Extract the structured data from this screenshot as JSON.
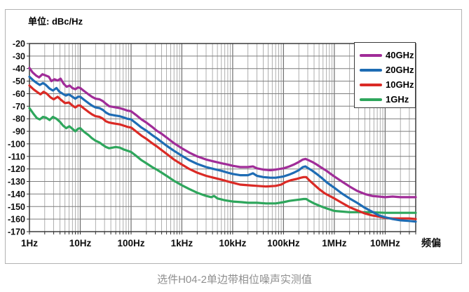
{
  "header": {
    "unit_label": "单位: dBc/Hz"
  },
  "caption": "选件H04-2单边带相位噪声实测值",
  "chart_data": {
    "type": "line",
    "title": "选件H04-2单边带相位噪声实测值",
    "unit_label": "单位: dBc/Hz",
    "xlabel": "频偏",
    "ylabel": "dBc/Hz",
    "x_scale": "log",
    "x_range": [
      1,
      40000000
    ],
    "ylim": [
      -170,
      -20
    ],
    "grid": true,
    "legend_position": "top-right",
    "y_ticks": [
      -20,
      -30,
      -40,
      -50,
      -60,
      -70,
      -80,
      -90,
      -100,
      -110,
      -120,
      -130,
      -140,
      -150,
      -160,
      -170
    ],
    "x_ticks": [
      {
        "f": 1,
        "label": "1Hz"
      },
      {
        "f": 10,
        "label": "10Hz"
      },
      {
        "f": 100,
        "label": "100Hz"
      },
      {
        "f": 1000,
        "label": "1kHz"
      },
      {
        "f": 10000,
        "label": "10kHz"
      },
      {
        "f": 100000,
        "label": "100kHz"
      },
      {
        "f": 1000000,
        "label": "1MHz"
      },
      {
        "f": 10000000,
        "label": "10MHz"
      }
    ],
    "series": [
      {
        "name": "40GHz",
        "color": "#A02C98",
        "points": [
          [
            1,
            -39.5
          ],
          [
            1.15,
            -43
          ],
          [
            1.35,
            -45.5
          ],
          [
            1.55,
            -47
          ],
          [
            1.8,
            -44.5
          ],
          [
            2.1,
            -45.5
          ],
          [
            2.4,
            -46.5
          ],
          [
            2.7,
            -50
          ],
          [
            3.1,
            -48.5
          ],
          [
            3.6,
            -49.5
          ],
          [
            4.1,
            -48
          ],
          [
            4.7,
            -52
          ],
          [
            5.4,
            -54.5
          ],
          [
            6.2,
            -53.5
          ],
          [
            7,
            -55.5
          ],
          [
            8,
            -56.5
          ],
          [
            9,
            -55
          ],
          [
            10,
            -55.5
          ],
          [
            12,
            -58
          ],
          [
            14.5,
            -60.5
          ],
          [
            17,
            -62.5
          ],
          [
            20,
            -64
          ],
          [
            24,
            -64.5
          ],
          [
            28,
            -66
          ],
          [
            32,
            -68
          ],
          [
            37,
            -70
          ],
          [
            43,
            -70.5
          ],
          [
            50,
            -71
          ],
          [
            60,
            -71.5
          ],
          [
            72,
            -72.5
          ],
          [
            85,
            -73.5
          ],
          [
            100,
            -74
          ],
          [
            125,
            -77
          ],
          [
            160,
            -80.5
          ],
          [
            200,
            -83
          ],
          [
            260,
            -86.5
          ],
          [
            320,
            -89.5
          ],
          [
            400,
            -92
          ],
          [
            520,
            -95.5
          ],
          [
            700,
            -99.5
          ],
          [
            1000,
            -103.5
          ],
          [
            1400,
            -107
          ],
          [
            2000,
            -110
          ],
          [
            3000,
            -112.5
          ],
          [
            4200,
            -114
          ],
          [
            6000,
            -115.5
          ],
          [
            8000,
            -116.5
          ],
          [
            10000,
            -117.5
          ],
          [
            14000,
            -118.5
          ],
          [
            20000,
            -118.5
          ],
          [
            25000,
            -118
          ],
          [
            30000,
            -119.5
          ],
          [
            40000,
            -120.5
          ],
          [
            55000,
            -121
          ],
          [
            70000,
            -120.5
          ],
          [
            100000,
            -119.5
          ],
          [
            130000,
            -118
          ],
          [
            160000,
            -116.5
          ],
          [
            200000,
            -114.5
          ],
          [
            240000,
            -112.5
          ],
          [
            270000,
            -112
          ],
          [
            310000,
            -113
          ],
          [
            370000,
            -114.5
          ],
          [
            450000,
            -116.5
          ],
          [
            560000,
            -119
          ],
          [
            700000,
            -121.5
          ],
          [
            850000,
            -124
          ],
          [
            1000000,
            -126
          ],
          [
            1400000,
            -130
          ],
          [
            2000000,
            -134
          ],
          [
            2800000,
            -137.5
          ],
          [
            4000000,
            -140
          ],
          [
            5500000,
            -141.5
          ],
          [
            7500000,
            -142
          ],
          [
            10000000,
            -142.5
          ],
          [
            14000000,
            -142
          ],
          [
            20000000,
            -142.5
          ],
          [
            30000000,
            -142.5
          ],
          [
            40000000,
            -142.5
          ]
        ]
      },
      {
        "name": "20GHz",
        "color": "#1E6CB4",
        "points": [
          [
            1,
            -46.5
          ],
          [
            1.2,
            -49.5
          ],
          [
            1.4,
            -51.5
          ],
          [
            1.6,
            -53
          ],
          [
            1.85,
            -51.5
          ],
          [
            2.1,
            -53
          ],
          [
            2.5,
            -56
          ],
          [
            2.9,
            -57.5
          ],
          [
            3.4,
            -55.5
          ],
          [
            3.9,
            -58.5
          ],
          [
            4.5,
            -60
          ],
          [
            5.2,
            -61.5
          ],
          [
            6,
            -60.5
          ],
          [
            7,
            -62.5
          ],
          [
            8,
            -64
          ],
          [
            9,
            -62.5
          ],
          [
            10,
            -62.5
          ],
          [
            12,
            -65
          ],
          [
            14.5,
            -67.5
          ],
          [
            17,
            -69.5
          ],
          [
            20,
            -71
          ],
          [
            24,
            -71.5
          ],
          [
            28,
            -73
          ],
          [
            32,
            -75
          ],
          [
            37,
            -76.5
          ],
          [
            43,
            -77
          ],
          [
            50,
            -77.5
          ],
          [
            60,
            -78
          ],
          [
            72,
            -79
          ],
          [
            85,
            -80
          ],
          [
            100,
            -80.5
          ],
          [
            125,
            -83.5
          ],
          [
            160,
            -87
          ],
          [
            200,
            -89.5
          ],
          [
            260,
            -93
          ],
          [
            320,
            -95.5
          ],
          [
            400,
            -98.5
          ],
          [
            520,
            -102
          ],
          [
            700,
            -105.5
          ],
          [
            1000,
            -109.5
          ],
          [
            1400,
            -113
          ],
          [
            2000,
            -116
          ],
          [
            3000,
            -118.5
          ],
          [
            4200,
            -120
          ],
          [
            6000,
            -121.5
          ],
          [
            8000,
            -123
          ],
          [
            10000,
            -124
          ],
          [
            14000,
            -125
          ],
          [
            20000,
            -125
          ],
          [
            25000,
            -123.5
          ],
          [
            30000,
            -125.5
          ],
          [
            40000,
            -126.5
          ],
          [
            55000,
            -127
          ],
          [
            70000,
            -127
          ],
          [
            100000,
            -126
          ],
          [
            130000,
            -124.5
          ],
          [
            160000,
            -123
          ],
          [
            200000,
            -121
          ],
          [
            240000,
            -118.5
          ],
          [
            270000,
            -118
          ],
          [
            310000,
            -119.5
          ],
          [
            370000,
            -121.5
          ],
          [
            450000,
            -124
          ],
          [
            560000,
            -127
          ],
          [
            700000,
            -130.5
          ],
          [
            850000,
            -133
          ],
          [
            1000000,
            -135
          ],
          [
            1400000,
            -139.5
          ],
          [
            2000000,
            -143.5
          ],
          [
            2800000,
            -147
          ],
          [
            4000000,
            -151
          ],
          [
            5500000,
            -154
          ],
          [
            7500000,
            -157
          ],
          [
            10000000,
            -158.5
          ],
          [
            14000000,
            -160
          ],
          [
            20000000,
            -161
          ],
          [
            30000000,
            -161.5
          ],
          [
            40000000,
            -162
          ]
        ]
      },
      {
        "name": "10GHz",
        "color": "#DA2A25",
        "points": [
          [
            1,
            -53.5
          ],
          [
            1.2,
            -56.5
          ],
          [
            1.4,
            -58.5
          ],
          [
            1.65,
            -60.5
          ],
          [
            1.9,
            -58.5
          ],
          [
            2.2,
            -60
          ],
          [
            2.6,
            -63
          ],
          [
            3,
            -64.5
          ],
          [
            3.6,
            -62.5
          ],
          [
            4.2,
            -65
          ],
          [
            5,
            -67.5
          ],
          [
            6,
            -67
          ],
          [
            7,
            -69.5
          ],
          [
            8,
            -71
          ],
          [
            9,
            -69.5
          ],
          [
            10,
            -69.5
          ],
          [
            12,
            -72
          ],
          [
            14.5,
            -74.5
          ],
          [
            17,
            -76.5
          ],
          [
            20,
            -78
          ],
          [
            24,
            -78.5
          ],
          [
            28,
            -80
          ],
          [
            32,
            -82
          ],
          [
            37,
            -83
          ],
          [
            43,
            -83.5
          ],
          [
            50,
            -84
          ],
          [
            60,
            -84.5
          ],
          [
            72,
            -85.5
          ],
          [
            85,
            -86.5
          ],
          [
            100,
            -87
          ],
          [
            125,
            -90
          ],
          [
            160,
            -93.5
          ],
          [
            200,
            -96
          ],
          [
            260,
            -99.5
          ],
          [
            320,
            -102
          ],
          [
            400,
            -105
          ],
          [
            520,
            -108.5
          ],
          [
            700,
            -112.5
          ],
          [
            1000,
            -116.5
          ],
          [
            1400,
            -120
          ],
          [
            2000,
            -123
          ],
          [
            3000,
            -125.5
          ],
          [
            4200,
            -127
          ],
          [
            6000,
            -128.5
          ],
          [
            8000,
            -130
          ],
          [
            10000,
            -131
          ],
          [
            14000,
            -132.5
          ],
          [
            20000,
            -133
          ],
          [
            30000,
            -133.5
          ],
          [
            45000,
            -134
          ],
          [
            70000,
            -133.5
          ],
          [
            90000,
            -132.5
          ],
          [
            110000,
            -130.5
          ],
          [
            140000,
            -129
          ],
          [
            180000,
            -128
          ],
          [
            220000,
            -127
          ],
          [
            250000,
            -126.5
          ],
          [
            280000,
            -126.5
          ],
          [
            320000,
            -129
          ],
          [
            400000,
            -132.5
          ],
          [
            500000,
            -136
          ],
          [
            650000,
            -139.5
          ],
          [
            850000,
            -142
          ],
          [
            1000000,
            -143.5
          ],
          [
            1400000,
            -147
          ],
          [
            2000000,
            -150.5
          ],
          [
            2800000,
            -153
          ],
          [
            4000000,
            -155.5
          ],
          [
            5500000,
            -157
          ],
          [
            7500000,
            -158
          ],
          [
            10000000,
            -159
          ],
          [
            14000000,
            -159.5
          ],
          [
            20000000,
            -159.5
          ],
          [
            30000000,
            -159.5
          ],
          [
            40000000,
            -160
          ]
        ]
      },
      {
        "name": "1GHz",
        "color": "#2EA65C",
        "points": [
          [
            1,
            -71.5
          ],
          [
            1.2,
            -76
          ],
          [
            1.4,
            -79.5
          ],
          [
            1.6,
            -80.5
          ],
          [
            1.85,
            -78.5
          ],
          [
            2.1,
            -79
          ],
          [
            2.5,
            -81
          ],
          [
            2.9,
            -78.5
          ],
          [
            3.4,
            -80
          ],
          [
            4,
            -82.5
          ],
          [
            4.6,
            -85.5
          ],
          [
            5.3,
            -87.5
          ],
          [
            6.1,
            -86
          ],
          [
            7,
            -88
          ],
          [
            8,
            -90
          ],
          [
            9,
            -88
          ],
          [
            10,
            -87.5
          ],
          [
            12,
            -90.5
          ],
          [
            14.5,
            -93
          ],
          [
            17,
            -95.5
          ],
          [
            20,
            -97.5
          ],
          [
            24,
            -99
          ],
          [
            28,
            -101
          ],
          [
            32,
            -102.5
          ],
          [
            37,
            -103.5
          ],
          [
            43,
            -103
          ],
          [
            50,
            -102.5
          ],
          [
            60,
            -103
          ],
          [
            72,
            -104.5
          ],
          [
            85,
            -105.5
          ],
          [
            100,
            -106.5
          ],
          [
            125,
            -109.5
          ],
          [
            160,
            -113
          ],
          [
            200,
            -115.5
          ],
          [
            260,
            -118.5
          ],
          [
            320,
            -120.5
          ],
          [
            400,
            -123
          ],
          [
            520,
            -126
          ],
          [
            700,
            -129.5
          ],
          [
            1000,
            -133
          ],
          [
            1400,
            -136
          ],
          [
            2000,
            -139
          ],
          [
            3000,
            -141.5
          ],
          [
            3800,
            -142.5
          ],
          [
            4300,
            -141.5
          ],
          [
            5000,
            -143.5
          ],
          [
            7000,
            -145
          ],
          [
            10000,
            -146
          ],
          [
            15000,
            -146.5
          ],
          [
            20000,
            -147
          ],
          [
            30000,
            -147
          ],
          [
            45000,
            -147.5
          ],
          [
            70000,
            -147.5
          ],
          [
            100000,
            -146.5
          ],
          [
            130000,
            -145.5
          ],
          [
            160000,
            -145
          ],
          [
            200000,
            -144.5
          ],
          [
            250000,
            -144
          ],
          [
            280000,
            -144
          ],
          [
            320000,
            -145.5
          ],
          [
            400000,
            -147.5
          ],
          [
            520000,
            -149.5
          ],
          [
            700000,
            -151.5
          ],
          [
            1000000,
            -153.5
          ],
          [
            1400000,
            -154
          ],
          [
            2000000,
            -154.5
          ],
          [
            3000000,
            -154.5
          ],
          [
            5000000,
            -154.5
          ],
          [
            10000000,
            -155
          ],
          [
            20000000,
            -155
          ],
          [
            40000000,
            -155
          ]
        ]
      }
    ]
  }
}
